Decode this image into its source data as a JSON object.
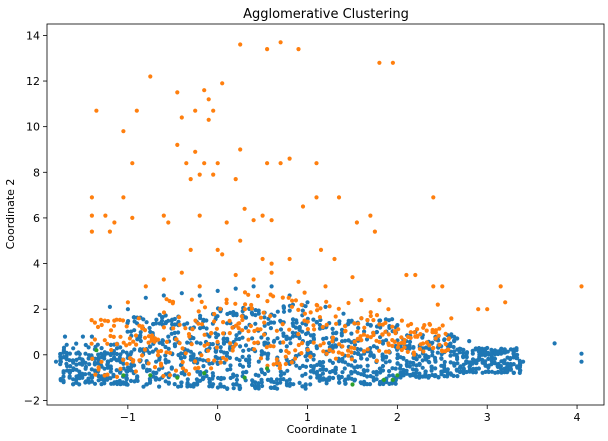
{
  "chart_data": {
    "type": "scatter",
    "title": "Agglomerative Clustering",
    "xlabel": "Coordinate 1",
    "ylabel": "Coordinate 2",
    "xlim": [
      -1.9,
      4.3
    ],
    "ylim": [
      -2.2,
      14.5
    ],
    "xticks": [
      -1,
      0,
      1,
      2,
      3,
      4
    ],
    "yticks": [
      -2,
      0,
      2,
      4,
      6,
      8,
      10,
      12,
      14
    ],
    "grid": false,
    "legend": "none",
    "series": [
      {
        "color": "#1f77b4",
        "points": [
          [
            -1.7,
            0.8
          ],
          [
            -1.8,
            -0.3
          ],
          [
            -1.55,
            0.1
          ],
          [
            -1.5,
            0.8
          ],
          [
            -1.4,
            0.8
          ],
          [
            -1.2,
            2.1
          ],
          [
            -1.0,
            2.0
          ],
          [
            -0.8,
            2.5
          ],
          [
            -0.6,
            2.6
          ],
          [
            -0.4,
            2.7
          ],
          [
            -0.2,
            2.6
          ],
          [
            0.0,
            2.8
          ],
          [
            0.2,
            2.9
          ],
          [
            0.4,
            3.0
          ],
          [
            0.6,
            3.0
          ],
          [
            0.8,
            2.6
          ],
          [
            1.0,
            2.3
          ],
          [
            1.2,
            2.1
          ],
          [
            1.4,
            1.8
          ],
          [
            1.6,
            1.6
          ],
          [
            1.8,
            1.5
          ],
          [
            2.0,
            1.3
          ],
          [
            2.2,
            1.0
          ],
          [
            2.4,
            1.0
          ],
          [
            2.6,
            0.9
          ],
          [
            2.8,
            0.6
          ],
          [
            3.0,
            0.3
          ],
          [
            3.2,
            0.1
          ],
          [
            3.4,
            -0.3
          ],
          [
            3.75,
            0.5
          ],
          [
            4.05,
            0.05
          ],
          [
            4.05,
            -0.3
          ]
        ],
        "bands": [
          {
            "x0": -1.75,
            "x1": -1.0,
            "lo": -1.3,
            "hi": 0.5
          },
          {
            "x0": -1.0,
            "x1": 0.0,
            "lo": -1.4,
            "hi": 1.8
          },
          {
            "x0": 0.0,
            "x1": 1.0,
            "lo": -1.5,
            "hi": 2.2
          },
          {
            "x0": 1.0,
            "x1": 2.0,
            "lo": -1.3,
            "hi": 1.6
          },
          {
            "x0": 2.0,
            "x1": 2.7,
            "lo": -1.0,
            "hi": 0.9
          },
          {
            "x0": 2.7,
            "x1": 3.4,
            "lo": -0.8,
            "hi": 0.3
          }
        ]
      },
      {
        "color": "#ff7f0e",
        "points": [
          [
            -1.4,
            6.9
          ],
          [
            -1.4,
            6.1
          ],
          [
            -1.4,
            5.4
          ],
          [
            -1.35,
            10.7
          ],
          [
            -1.25,
            6.1
          ],
          [
            -1.2,
            5.4
          ],
          [
            -1.15,
            5.8
          ],
          [
            -1.05,
            9.8
          ],
          [
            -1.05,
            6.9
          ],
          [
            -0.95,
            8.4
          ],
          [
            -0.95,
            6.0
          ],
          [
            -0.9,
            10.7
          ],
          [
            -0.75,
            12.2
          ],
          [
            -0.6,
            6.1
          ],
          [
            -0.55,
            5.8
          ],
          [
            -0.45,
            11.5
          ],
          [
            -0.45,
            9.2
          ],
          [
            -0.4,
            10.4
          ],
          [
            -0.35,
            8.4
          ],
          [
            -0.3,
            7.7
          ],
          [
            -0.25,
            10.7
          ],
          [
            -0.25,
            8.9
          ],
          [
            -0.2,
            7.9
          ],
          [
            -0.2,
            6.1
          ],
          [
            -0.15,
            11.6
          ],
          [
            -0.15,
            8.4
          ],
          [
            -0.1,
            11.2
          ],
          [
            -0.1,
            10.3
          ],
          [
            -0.05,
            10.7
          ],
          [
            -0.05,
            7.9
          ],
          [
            0.0,
            8.4
          ],
          [
            0.05,
            11.9
          ],
          [
            0.1,
            5.8
          ],
          [
            0.2,
            7.7
          ],
          [
            0.25,
            13.6
          ],
          [
            0.25,
            9.0
          ],
          [
            0.3,
            6.4
          ],
          [
            0.4,
            5.9
          ],
          [
            0.5,
            6.1
          ],
          [
            0.55,
            13.4
          ],
          [
            0.55,
            8.4
          ],
          [
            0.6,
            5.9
          ],
          [
            0.7,
            13.7
          ],
          [
            0.7,
            8.4
          ],
          [
            0.8,
            8.6
          ],
          [
            0.9,
            13.4
          ],
          [
            0.95,
            6.5
          ],
          [
            1.1,
            8.4
          ],
          [
            1.1,
            6.9
          ],
          [
            1.35,
            6.9
          ],
          [
            1.55,
            5.8
          ],
          [
            1.7,
            6.1
          ],
          [
            1.8,
            12.8
          ],
          [
            1.95,
            12.8
          ],
          [
            1.75,
            5.4
          ],
          [
            2.4,
            6.9
          ],
          [
            -0.4,
            3.6
          ],
          [
            -0.3,
            4.6
          ],
          [
            0.0,
            4.6
          ],
          [
            0.05,
            4.4
          ],
          [
            0.25,
            5.0
          ],
          [
            0.5,
            4.2
          ],
          [
            0.6,
            4.0
          ],
          [
            0.8,
            4.2
          ],
          [
            1.15,
            4.6
          ],
          [
            1.3,
            4.2
          ],
          [
            1.5,
            3.4
          ],
          [
            2.1,
            3.5
          ],
          [
            2.2,
            3.5
          ],
          [
            2.4,
            3.0
          ],
          [
            2.5,
            3.0
          ],
          [
            2.45,
            2.2
          ],
          [
            2.9,
            2.0
          ],
          [
            3.0,
            2.0
          ],
          [
            3.15,
            3.0
          ],
          [
            3.2,
            2.3
          ],
          [
            4.05,
            3.0
          ],
          [
            -0.6,
            3.3
          ],
          [
            -0.8,
            3.0
          ],
          [
            -1.0,
            2.3
          ],
          [
            -0.2,
            3.0
          ],
          [
            0.2,
            3.5
          ],
          [
            0.4,
            3.3
          ],
          [
            0.6,
            3.6
          ],
          [
            0.9,
            3.2
          ],
          [
            1.2,
            3.0
          ],
          [
            1.6,
            2.4
          ],
          [
            1.8,
            2.4
          ],
          [
            1.9,
            2.0
          ],
          [
            2.05,
            1.5
          ],
          [
            2.3,
            1.3
          ],
          [
            2.6,
            1.6
          ],
          [
            2.2,
            0.8
          ],
          [
            1.9,
            0.5
          ],
          [
            2.4,
            0.3
          ]
        ],
        "bands": [
          {
            "x0": -1.4,
            "x1": -0.6,
            "lo": -1.0,
            "hi": 1.6
          },
          {
            "x0": -0.6,
            "x1": 0.2,
            "lo": -1.0,
            "hi": 2.5
          },
          {
            "x0": 0.2,
            "x1": 1.0,
            "lo": -0.6,
            "hi": 2.8
          },
          {
            "x0": 1.0,
            "x1": 1.8,
            "lo": -0.4,
            "hi": 2.4
          },
          {
            "x0": 1.8,
            "x1": 2.6,
            "lo": 0.0,
            "hi": 1.4
          }
        ]
      },
      {
        "color": "#2ca02c",
        "points": [
          [
            -1.35,
            0.2
          ],
          [
            -1.05,
            -0.9
          ],
          [
            -0.75,
            -0.9
          ],
          [
            -0.45,
            -1.0
          ],
          [
            -0.15,
            -0.8
          ],
          [
            0.3,
            -1.0
          ],
          [
            0.55,
            -0.6
          ],
          [
            1.5,
            -1.3
          ],
          [
            1.85,
            -1.1
          ],
          [
            1.95,
            -1.1
          ],
          [
            2.0,
            -0.9
          ]
        ]
      }
    ]
  }
}
